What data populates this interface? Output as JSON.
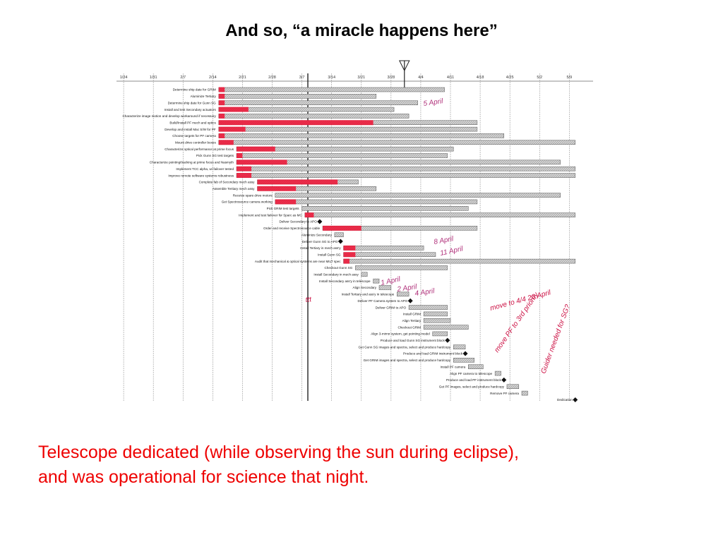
{
  "header": {
    "title": "And so, “a miracle happens here”"
  },
  "gantt": {
    "type": "gantt",
    "xlim": [
      -0.24,
      15.8
    ],
    "xticks": [
      {
        "value": 0,
        "label": "1/24"
      },
      {
        "value": 1,
        "label": "1/31"
      },
      {
        "value": 2,
        "label": "2/7"
      },
      {
        "value": 3,
        "label": "2/14"
      },
      {
        "value": 4,
        "label": "2/21"
      },
      {
        "value": 5,
        "label": "2/28"
      },
      {
        "value": 6,
        "label": "3/7"
      },
      {
        "value": 7,
        "label": "3/14"
      },
      {
        "value": 8,
        "label": "3/21"
      },
      {
        "value": 9,
        "label": "3/28"
      },
      {
        "value": 10,
        "label": "4/4"
      },
      {
        "value": 11,
        "label": "4/11"
      },
      {
        "value": 12,
        "label": "4/18"
      },
      {
        "value": 13,
        "label": "4/25"
      },
      {
        "value": 14,
        "label": "5/2"
      },
      {
        "value": 15,
        "label": "5/9"
      }
    ],
    "status_line": 6.2,
    "today_marker": 9.45,
    "bar_color": "#bbbbbb",
    "progress_color": "#ee1133",
    "tasks": [
      {
        "name": "Determine ship date for GRIM",
        "start": 3.2,
        "end": 10.8,
        "progress": 3.4
      },
      {
        "name": "Aluminize Tertiary",
        "start": 3.2,
        "end": 8.5,
        "progress": 3.4
      },
      {
        "name": "Determine ship date for Gunn SG",
        "start": 3.2,
        "end": 9.9,
        "progress": 3.4
      },
      {
        "name": "Install and test Secondary actuators",
        "start": 3.2,
        "end": 9.1,
        "progress": 4.2
      },
      {
        "name": "Characterize image motion and develop workaround if necessary",
        "start": 3.2,
        "end": 9.6,
        "progress": 3.4
      },
      {
        "name": "Build/Install PF mech and optics",
        "start": 3.2,
        "end": 11.9,
        "progress": 8.4
      },
      {
        "name": "Develop and install Mac S/W for PF",
        "start": 3.2,
        "end": 11.9,
        "progress": 4.1
      },
      {
        "name": "Choose targets for PF camera",
        "start": 3.2,
        "end": 12.8,
        "progress": 3.4
      },
      {
        "name": "Mount drive controller boxes",
        "start": 3.2,
        "end": 15.2,
        "progress": 3.7
      },
      {
        "name": "Characterize optical performance at prime focus",
        "start": 3.8,
        "end": 11.1,
        "progress": 5.1
      },
      {
        "name": "Pick Gunn SG test targets",
        "start": 3.8,
        "end": 10.9,
        "progress": 4.0
      },
      {
        "name": "Characterize pointing/tracking at prime focus and Nasmyth",
        "start": 3.8,
        "end": 14.7,
        "progress": 5.5
      },
      {
        "name": "Implement TCC alpha, w/ failover tested",
        "start": 3.8,
        "end": 15.2,
        "progress": 4.3
      },
      {
        "name": "Improve remote software systems robustness",
        "start": 3.8,
        "end": 15.2,
        "progress": 4.3
      },
      {
        "name": "Complete fab of Secondary mech assy",
        "start": 4.5,
        "end": 7.9,
        "progress": 7.2
      },
      {
        "name": "Assemble Tertiary mech assy",
        "start": 4.5,
        "end": 8.5,
        "progress": 5.8
      },
      {
        "name": "Receive spare drive motors",
        "start": 5.1,
        "end": 14.7,
        "progress": 5.1
      },
      {
        "name": "Get Spectrosource camera working",
        "start": 5.1,
        "end": 11.9,
        "progress": 5.8
      },
      {
        "name": "Pick GRIM test targets",
        "start": 6.0,
        "end": 11.6,
        "progress": 6.0
      },
      {
        "name": "Implement and test failover for Sparc as MC",
        "start": 6.1,
        "end": 15.2,
        "progress": 6.4
      },
      {
        "name": "Deliver Secondary to APO",
        "start": 6.6,
        "end": 6.6,
        "progress": 6.6
      },
      {
        "name": "Order and receive Spectrosource cable",
        "start": 6.7,
        "end": 11.9,
        "progress": 8.0
      },
      {
        "name": "Aluminize Secondary",
        "start": 7.1,
        "end": 7.4,
        "progress": 7.1
      },
      {
        "name": "Deliver Gunn SG to APO",
        "start": 7.3,
        "end": 7.3,
        "progress": 7.3
      },
      {
        "name": "Install Tertiary in mech ass'y",
        "start": 7.4,
        "end": 10.1,
        "progress": 7.8
      },
      {
        "name": "Install Gunn SG",
        "start": 7.4,
        "end": 10.5,
        "progress": 7.8
      },
      {
        "name": "Audit that mechanical & optical systems are near MILT spec",
        "start": 7.4,
        "end": 15.2,
        "progress": 7.6
      },
      {
        "name": "Checkout Gunn SG",
        "start": 7.8,
        "end": 10.9,
        "progress": 7.8
      },
      {
        "name": "Install Secondary in mech assy",
        "start": 8.0,
        "end": 8.2,
        "progress": 8.0
      },
      {
        "name": "Install Secondary ass'y in telescope",
        "start": 8.4,
        "end": 8.6,
        "progress": 8.4
      },
      {
        "name": "Align Secondary",
        "start": 8.6,
        "end": 9.0,
        "progress": 8.6
      },
      {
        "name": "Install Tertiary and ass'y in telescope",
        "start": 9.2,
        "end": 9.6,
        "progress": 9.2
      },
      {
        "name": "Deliver PF Camera system to APO",
        "start": 9.65,
        "end": 9.65,
        "progress": 9.65
      },
      {
        "name": "Deliver GRIM to APO",
        "start": 9.6,
        "end": 10.9,
        "progress": 9.6
      },
      {
        "name": "Install GRIM",
        "start": 10.1,
        "end": 10.9,
        "progress": 10.1
      },
      {
        "name": "Align Tertiary",
        "start": 10.1,
        "end": 11.0,
        "progress": 10.1
      },
      {
        "name": "Checkout GRIM",
        "start": 10.1,
        "end": 11.6,
        "progress": 10.1
      },
      {
        "name": "Align 3-mirror system, get pointing model",
        "start": 10.4,
        "end": 10.9,
        "progress": 10.4
      },
      {
        "name": "Produce and load Gunn SG instrument block",
        "start": 10.9,
        "end": 10.9,
        "progress": 10.9
      },
      {
        "name": "Get Gunn SG images and spectra, select and produce hardcopy",
        "start": 11.1,
        "end": 11.5,
        "progress": 11.1
      },
      {
        "name": "Produce and load GRIM instrument block",
        "start": 11.5,
        "end": 11.5,
        "progress": 11.5
      },
      {
        "name": "Get GRIM images and spectra, select and produce hardcopy",
        "start": 11.1,
        "end": 11.8,
        "progress": 11.1
      },
      {
        "name": "Install PF camera",
        "start": 11.6,
        "end": 12.1,
        "progress": 11.6
      },
      {
        "name": "Align PF camera to telescope",
        "start": 12.5,
        "end": 12.7,
        "progress": 12.5
      },
      {
        "name": "Produce and load PF instrument block",
        "start": 12.8,
        "end": 12.8,
        "progress": 12.8
      },
      {
        "name": "Get PF images, select and produce hardcopy",
        "start": 12.9,
        "end": 13.3,
        "progress": 12.9
      },
      {
        "name": "Remove PF camera",
        "start": 13.4,
        "end": 13.6,
        "progress": 13.4
      },
      {
        "name": "Dedication",
        "start": 15.2,
        "end": 15.2,
        "progress": 15.2
      }
    ],
    "annotations": [
      "5 April",
      "8 April",
      "11 April",
      "1 April",
      "2 April",
      "4 April",
      "ttt",
      "move to 4/4 20 April",
      "move PF to 3rd priority",
      "Guider needed for SG?"
    ]
  },
  "caption": {
    "lines": [
      "Telescope dedicated (while observing the sun during eclipse),",
      "and was operational for science that night."
    ]
  }
}
